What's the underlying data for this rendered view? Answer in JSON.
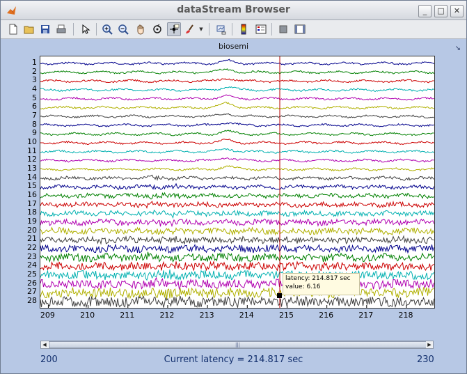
{
  "window": {
    "title": "dataStream Browser"
  },
  "window_controls": {
    "minimize": "_",
    "maximize": "□",
    "close": "✕"
  },
  "toolbar": {
    "buttons": [
      "new-file-icon",
      "open-folder-icon",
      "save-icon",
      "print-icon",
      "pointer-icon",
      "zoom-in-icon",
      "zoom-out-icon",
      "pan-icon",
      "rotate-icon",
      "data-cursor-icon",
      "brush-icon",
      "brush-dropdown-icon",
      "link-plot-icon",
      "colorbar-icon",
      "legend-icon",
      "hide-plot-tools-icon",
      "show-plot-tools-icon"
    ]
  },
  "plot": {
    "title": "biosemi",
    "channels": [
      "1",
      "2",
      "3",
      "4",
      "5",
      "6",
      "7",
      "8",
      "9",
      "10",
      "11",
      "12",
      "13",
      "14",
      "15",
      "16",
      "17",
      "18",
      "19",
      "20",
      "21",
      "22",
      "23",
      "24",
      "25",
      "26",
      "27",
      "28"
    ],
    "x_ticks": [
      "209",
      "210",
      "211",
      "212",
      "213",
      "214",
      "215",
      "216",
      "217",
      "218"
    ],
    "x_range": [
      208.8,
      218.7
    ],
    "cursor_latency": 214.817,
    "tooltip": {
      "latency_line": "latency: 214.817 sec",
      "value_line": "value: 6.16"
    },
    "colors": {
      "cursor": "#b40000",
      "palette": [
        "#00008b",
        "#008000",
        "#cc0000",
        "#00b0b0",
        "#b000b0",
        "#b0b000",
        "#404040"
      ]
    }
  },
  "scrollbar": {
    "left_arrow": "◀",
    "right_arrow": "▶",
    "grip": "|||"
  },
  "status": {
    "range_start": "200",
    "range_end": "230",
    "current_latency": "Current latency = 214.817 sec"
  }
}
